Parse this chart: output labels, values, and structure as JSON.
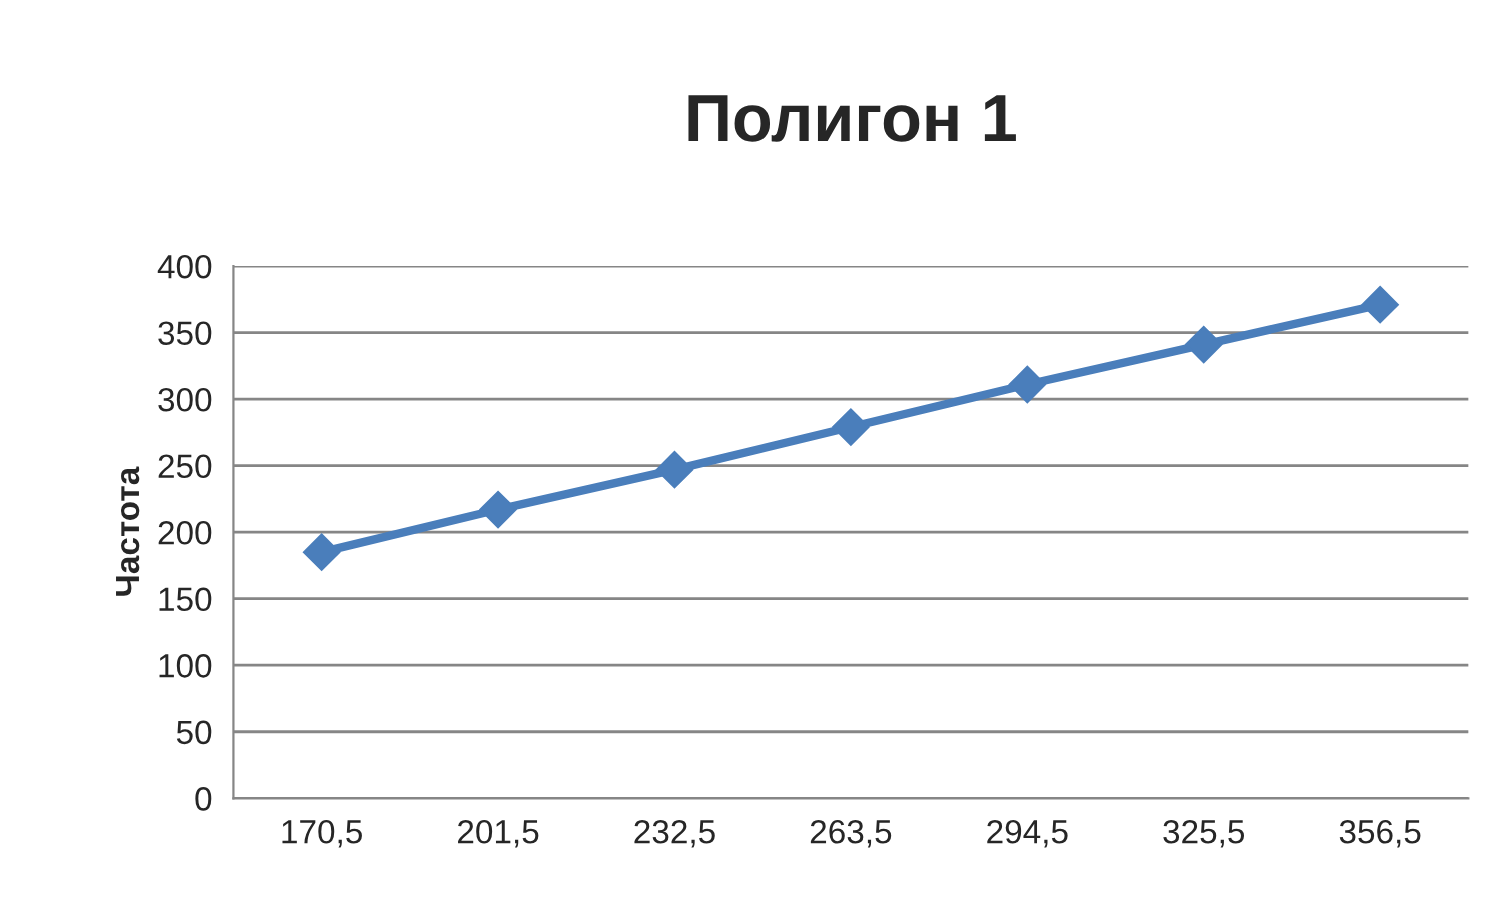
{
  "chart_data": {
    "type": "line",
    "title": "Полигон 1",
    "ylabel": "Частота",
    "categories": [
      "170,5",
      "201,5",
      "232,5",
      "263,5",
      "294,5",
      "325,5",
      "356,5"
    ],
    "series": [
      {
        "color": "#4a7ebb",
        "values": [
          185,
          217,
          247,
          279,
          311,
          341,
          371
        ]
      }
    ],
    "ylim": [
      0,
      400
    ],
    "yticks": [
      0,
      50,
      100,
      150,
      200,
      250,
      300,
      350,
      400
    ],
    "grid": "y",
    "legend": false,
    "marker": "diamond",
    "line_style": "solid"
  }
}
